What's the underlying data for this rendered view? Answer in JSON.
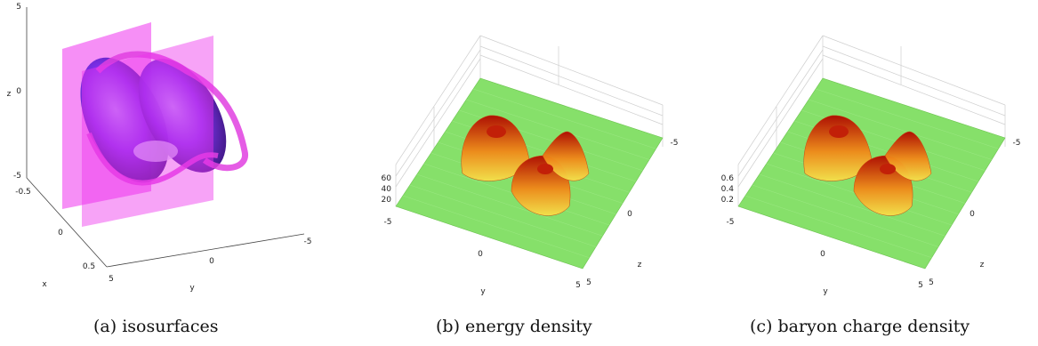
{
  "figure": {
    "panels": [
      {
        "id": "a",
        "caption": "(a) isosurfaces",
        "axis_labels": {
          "x": "x",
          "y": "y",
          "z": "z"
        },
        "x_ticks": [
          "-0.5",
          "0",
          "0.5"
        ],
        "y_ticks": [
          "5",
          "0",
          "-5"
        ],
        "z_ticks": [
          "5",
          "0",
          "-5"
        ]
      },
      {
        "id": "b",
        "caption": "(b) energy density",
        "axis_labels": {
          "y": "y",
          "z": "z"
        },
        "vertical_ticks": [
          "60",
          "40",
          "20"
        ],
        "y_ticks": [
          "-5",
          "0",
          "5"
        ],
        "z_ticks": [
          "-5",
          "0",
          "5"
        ]
      },
      {
        "id": "c",
        "caption": "(c) baryon charge density",
        "axis_labels": {
          "y": "y",
          "z": "z"
        },
        "vertical_ticks": [
          "0.6",
          "0.4",
          "0.2"
        ],
        "y_ticks": [
          "-5",
          "0",
          "5"
        ],
        "z_ticks": [
          "-5",
          "0",
          "5"
        ]
      }
    ],
    "colors": {
      "plane": "#ee33ee",
      "isosurface": "#7a2cf0",
      "isosurface_edge": "#e040e0",
      "floor": "#86e06a",
      "peak_low": "#f5e04a",
      "peak_high": "#b00a00"
    }
  }
}
